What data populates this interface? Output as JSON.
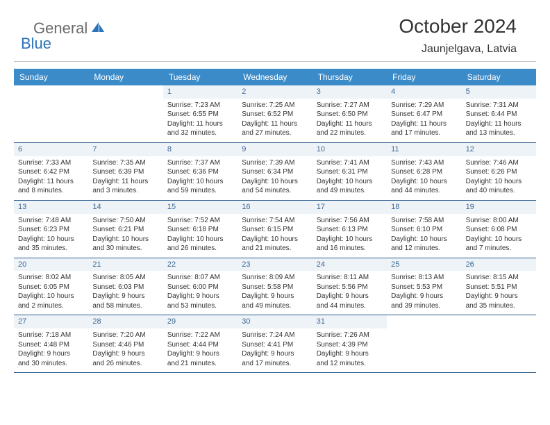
{
  "logo": {
    "general": "General",
    "blue": "Blue"
  },
  "title": "October 2024",
  "location": "Jaunjelgava, Latvia",
  "colors": {
    "header_bg": "#3b8bc9",
    "daynum_bg": "#eef3f8",
    "daynum_color": "#3e6a95",
    "week_border": "#2a5a8a",
    "logo_gray": "#6a6a6a",
    "logo_blue": "#2a73b8",
    "text": "#333333"
  },
  "day_names": [
    "Sunday",
    "Monday",
    "Tuesday",
    "Wednesday",
    "Thursday",
    "Friday",
    "Saturday"
  ],
  "weeks": [
    [
      null,
      null,
      {
        "n": "1",
        "sr": "Sunrise: 7:23 AM",
        "ss": "Sunset: 6:55 PM",
        "d1": "Daylight: 11 hours",
        "d2": "and 32 minutes."
      },
      {
        "n": "2",
        "sr": "Sunrise: 7:25 AM",
        "ss": "Sunset: 6:52 PM",
        "d1": "Daylight: 11 hours",
        "d2": "and 27 minutes."
      },
      {
        "n": "3",
        "sr": "Sunrise: 7:27 AM",
        "ss": "Sunset: 6:50 PM",
        "d1": "Daylight: 11 hours",
        "d2": "and 22 minutes."
      },
      {
        "n": "4",
        "sr": "Sunrise: 7:29 AM",
        "ss": "Sunset: 6:47 PM",
        "d1": "Daylight: 11 hours",
        "d2": "and 17 minutes."
      },
      {
        "n": "5",
        "sr": "Sunrise: 7:31 AM",
        "ss": "Sunset: 6:44 PM",
        "d1": "Daylight: 11 hours",
        "d2": "and 13 minutes."
      }
    ],
    [
      {
        "n": "6",
        "sr": "Sunrise: 7:33 AM",
        "ss": "Sunset: 6:42 PM",
        "d1": "Daylight: 11 hours",
        "d2": "and 8 minutes."
      },
      {
        "n": "7",
        "sr": "Sunrise: 7:35 AM",
        "ss": "Sunset: 6:39 PM",
        "d1": "Daylight: 11 hours",
        "d2": "and 3 minutes."
      },
      {
        "n": "8",
        "sr": "Sunrise: 7:37 AM",
        "ss": "Sunset: 6:36 PM",
        "d1": "Daylight: 10 hours",
        "d2": "and 59 minutes."
      },
      {
        "n": "9",
        "sr": "Sunrise: 7:39 AM",
        "ss": "Sunset: 6:34 PM",
        "d1": "Daylight: 10 hours",
        "d2": "and 54 minutes."
      },
      {
        "n": "10",
        "sr": "Sunrise: 7:41 AM",
        "ss": "Sunset: 6:31 PM",
        "d1": "Daylight: 10 hours",
        "d2": "and 49 minutes."
      },
      {
        "n": "11",
        "sr": "Sunrise: 7:43 AM",
        "ss": "Sunset: 6:28 PM",
        "d1": "Daylight: 10 hours",
        "d2": "and 44 minutes."
      },
      {
        "n": "12",
        "sr": "Sunrise: 7:46 AM",
        "ss": "Sunset: 6:26 PM",
        "d1": "Daylight: 10 hours",
        "d2": "and 40 minutes."
      }
    ],
    [
      {
        "n": "13",
        "sr": "Sunrise: 7:48 AM",
        "ss": "Sunset: 6:23 PM",
        "d1": "Daylight: 10 hours",
        "d2": "and 35 minutes."
      },
      {
        "n": "14",
        "sr": "Sunrise: 7:50 AM",
        "ss": "Sunset: 6:21 PM",
        "d1": "Daylight: 10 hours",
        "d2": "and 30 minutes."
      },
      {
        "n": "15",
        "sr": "Sunrise: 7:52 AM",
        "ss": "Sunset: 6:18 PM",
        "d1": "Daylight: 10 hours",
        "d2": "and 26 minutes."
      },
      {
        "n": "16",
        "sr": "Sunrise: 7:54 AM",
        "ss": "Sunset: 6:15 PM",
        "d1": "Daylight: 10 hours",
        "d2": "and 21 minutes."
      },
      {
        "n": "17",
        "sr": "Sunrise: 7:56 AM",
        "ss": "Sunset: 6:13 PM",
        "d1": "Daylight: 10 hours",
        "d2": "and 16 minutes."
      },
      {
        "n": "18",
        "sr": "Sunrise: 7:58 AM",
        "ss": "Sunset: 6:10 PM",
        "d1": "Daylight: 10 hours",
        "d2": "and 12 minutes."
      },
      {
        "n": "19",
        "sr": "Sunrise: 8:00 AM",
        "ss": "Sunset: 6:08 PM",
        "d1": "Daylight: 10 hours",
        "d2": "and 7 minutes."
      }
    ],
    [
      {
        "n": "20",
        "sr": "Sunrise: 8:02 AM",
        "ss": "Sunset: 6:05 PM",
        "d1": "Daylight: 10 hours",
        "d2": "and 2 minutes."
      },
      {
        "n": "21",
        "sr": "Sunrise: 8:05 AM",
        "ss": "Sunset: 6:03 PM",
        "d1": "Daylight: 9 hours",
        "d2": "and 58 minutes."
      },
      {
        "n": "22",
        "sr": "Sunrise: 8:07 AM",
        "ss": "Sunset: 6:00 PM",
        "d1": "Daylight: 9 hours",
        "d2": "and 53 minutes."
      },
      {
        "n": "23",
        "sr": "Sunrise: 8:09 AM",
        "ss": "Sunset: 5:58 PM",
        "d1": "Daylight: 9 hours",
        "d2": "and 49 minutes."
      },
      {
        "n": "24",
        "sr": "Sunrise: 8:11 AM",
        "ss": "Sunset: 5:56 PM",
        "d1": "Daylight: 9 hours",
        "d2": "and 44 minutes."
      },
      {
        "n": "25",
        "sr": "Sunrise: 8:13 AM",
        "ss": "Sunset: 5:53 PM",
        "d1": "Daylight: 9 hours",
        "d2": "and 39 minutes."
      },
      {
        "n": "26",
        "sr": "Sunrise: 8:15 AM",
        "ss": "Sunset: 5:51 PM",
        "d1": "Daylight: 9 hours",
        "d2": "and 35 minutes."
      }
    ],
    [
      {
        "n": "27",
        "sr": "Sunrise: 7:18 AM",
        "ss": "Sunset: 4:48 PM",
        "d1": "Daylight: 9 hours",
        "d2": "and 30 minutes."
      },
      {
        "n": "28",
        "sr": "Sunrise: 7:20 AM",
        "ss": "Sunset: 4:46 PM",
        "d1": "Daylight: 9 hours",
        "d2": "and 26 minutes."
      },
      {
        "n": "29",
        "sr": "Sunrise: 7:22 AM",
        "ss": "Sunset: 4:44 PM",
        "d1": "Daylight: 9 hours",
        "d2": "and 21 minutes."
      },
      {
        "n": "30",
        "sr": "Sunrise: 7:24 AM",
        "ss": "Sunset: 4:41 PM",
        "d1": "Daylight: 9 hours",
        "d2": "and 17 minutes."
      },
      {
        "n": "31",
        "sr": "Sunrise: 7:26 AM",
        "ss": "Sunset: 4:39 PM",
        "d1": "Daylight: 9 hours",
        "d2": "and 12 minutes."
      },
      null,
      null
    ]
  ]
}
